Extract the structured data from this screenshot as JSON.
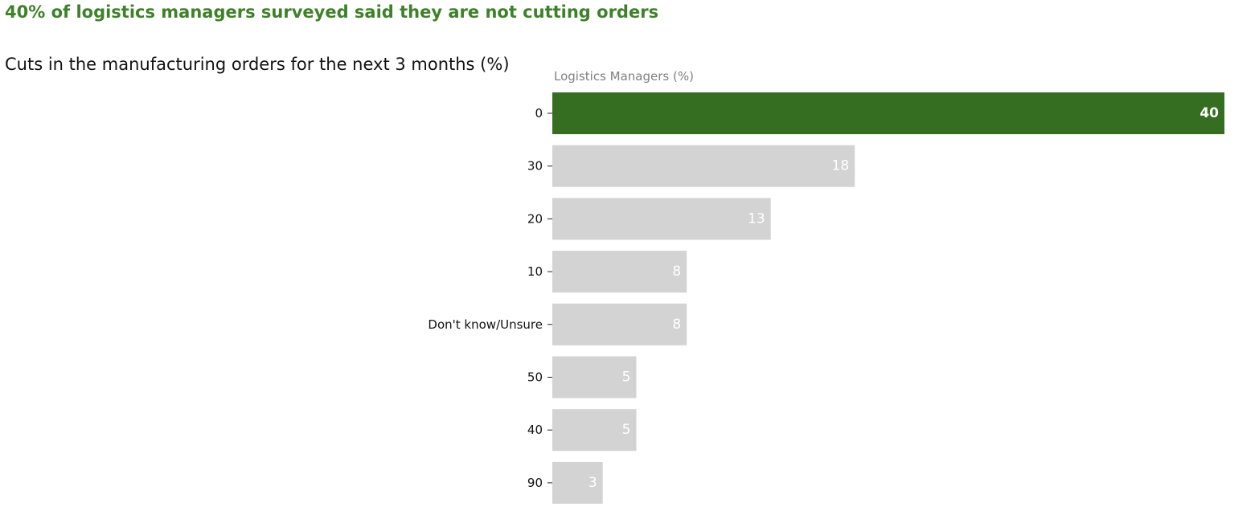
{
  "headline": "40% of logistics managers surveyed said they are not cutting orders",
  "subtitle": "Cuts in the manufacturing orders for the next 3 months (%)",
  "colors": {
    "highlight": "#366e21",
    "bar": "#d3d3d3",
    "headline": "#3d8128",
    "label_on_bar": "#ffffff"
  },
  "chart_data": {
    "type": "bar",
    "orientation": "horizontal",
    "title": "Cuts in the manufacturing orders for the next 3 months (%)",
    "xlabel": "Logistics Managers (%)",
    "categories": [
      "0",
      "30",
      "20",
      "10",
      "Don't know/Unsure",
      "50",
      "40",
      "90"
    ],
    "values": [
      40,
      18,
      13,
      8,
      8,
      5,
      5,
      3
    ],
    "highlight_index": 0,
    "xlim": [
      0,
      40
    ],
    "grid": false
  }
}
